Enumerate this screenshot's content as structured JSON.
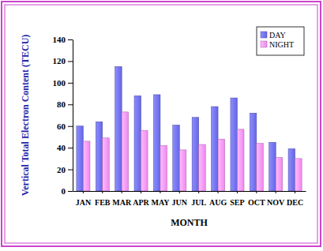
{
  "chart_data": {
    "type": "bar",
    "categories": [
      "JAN",
      "FEB",
      "MAR",
      "APR",
      "MAY",
      "JUN",
      "JUL",
      "AUG",
      "SEP",
      "OCT",
      "NOV",
      "DEC"
    ],
    "series": [
      {
        "name": "DAY",
        "color": "#6666e6",
        "values": [
          60,
          64,
          115,
          88,
          89,
          61,
          68,
          78,
          86,
          72,
          45,
          39
        ]
      },
      {
        "name": "NIGHT",
        "color": "#ee88ee",
        "values": [
          46,
          49,
          73,
          56,
          42,
          38,
          43,
          48,
          57,
          44,
          31,
          30
        ]
      }
    ],
    "x_label": "MONTH",
    "y_label": "Vertical Total Electron Content (TECU)",
    "ylim": [
      0,
      140
    ],
    "yticks": [
      0,
      20,
      40,
      60,
      80,
      100,
      120,
      140
    ],
    "grid": false,
    "legend": "top-right"
  }
}
